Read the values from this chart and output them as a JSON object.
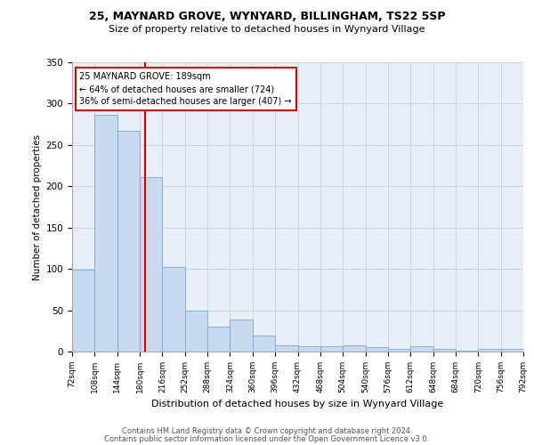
{
  "title1": "25, MAYNARD GROVE, WYNYARD, BILLINGHAM, TS22 5SP",
  "title2": "Size of property relative to detached houses in Wynyard Village",
  "xlabel": "Distribution of detached houses by size in Wynyard Village",
  "ylabel": "Number of detached properties",
  "footnote1": "Contains HM Land Registry data © Crown copyright and database right 2024.",
  "footnote2": "Contains public sector information licensed under the Open Government Licence v3.0.",
  "property_size": 189,
  "property_label": "25 MAYNARD GROVE: 189sqm",
  "annotation_line1": "← 64% of detached houses are smaller (724)",
  "annotation_line2": "36% of semi-detached houses are larger (407) →",
  "bar_color": "#c9d9f0",
  "bar_edge_color": "#7aaad0",
  "vline_color": "#cc0000",
  "annotation_box_edge": "#cc0000",
  "grid_color": "#c8d4e8",
  "background_color": "#e8eef8",
  "bin_edges": [
    72,
    108,
    144,
    180,
    216,
    252,
    288,
    324,
    360,
    396,
    432,
    468,
    504,
    540,
    576,
    612,
    648,
    684,
    720,
    756,
    792
  ],
  "bin_labels": [
    "72sqm",
    "108sqm",
    "144sqm",
    "180sqm",
    "216sqm",
    "252sqm",
    "288sqm",
    "324sqm",
    "360sqm",
    "396sqm",
    "432sqm",
    "468sqm",
    "504sqm",
    "540sqm",
    "576sqm",
    "612sqm",
    "648sqm",
    "684sqm",
    "720sqm",
    "756sqm",
    "792sqm"
  ],
  "counts": [
    99,
    286,
    267,
    211,
    102,
    50,
    30,
    39,
    19,
    8,
    7,
    7,
    8,
    5,
    3,
    6,
    3,
    1,
    3,
    3
  ],
  "ylim": [
    0,
    350
  ],
  "yticks": [
    0,
    50,
    100,
    150,
    200,
    250,
    300,
    350
  ]
}
